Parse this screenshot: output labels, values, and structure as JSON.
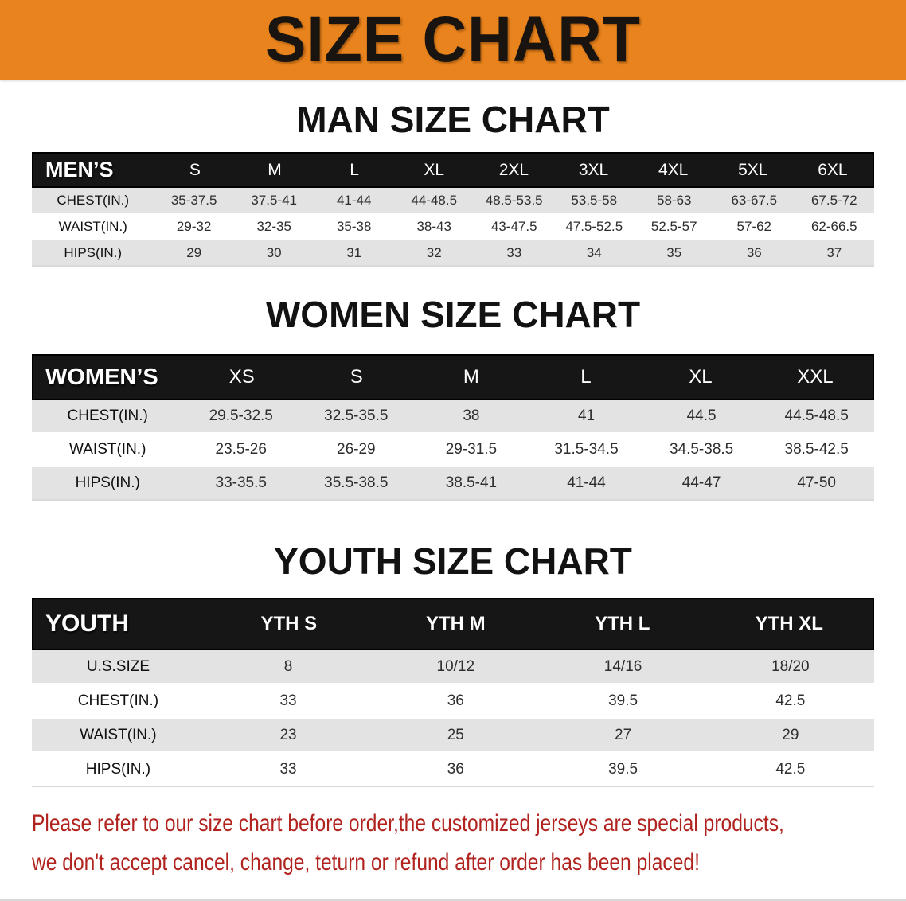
{
  "banner": {
    "title": "SIZE CHART"
  },
  "colors": {
    "banner_orange": "#e8831d",
    "header_black": "#161616",
    "row_gray": "#e3e3e3",
    "disclaimer_red": "#b1231f"
  },
  "sections": [
    {
      "id": "men",
      "title": "MAN SIZE CHART",
      "table": {
        "label": "MEN’S",
        "columns": [
          "S",
          "M",
          "L",
          "XL",
          "2XL",
          "3XL",
          "4XL",
          "5XL",
          "6XL"
        ],
        "rows": [
          {
            "label": "CHEST(IN.)",
            "values": [
              "35-37.5",
              "37.5-41",
              "41-44",
              "44-48.5",
              "48.5-53.5",
              "53.5-58",
              "58-63",
              "63-67.5",
              "67.5-72"
            ]
          },
          {
            "label": "WAIST(IN.)",
            "values": [
              "29-32",
              "32-35",
              "35-38",
              "38-43",
              "43-47.5",
              "47.5-52.5",
              "52.5-57",
              "57-62",
              "62-66.5"
            ]
          },
          {
            "label": "HIPS(IN.)",
            "values": [
              "29",
              "30",
              "31",
              "32",
              "33",
              "34",
              "35",
              "36",
              "37"
            ]
          }
        ]
      }
    },
    {
      "id": "women",
      "title": "WOMEN SIZE CHART",
      "table": {
        "label": "WOMEN’S",
        "columns": [
          "XS",
          "S",
          "M",
          "L",
          "XL",
          "XXL"
        ],
        "rows": [
          {
            "label": "CHEST(IN.)",
            "values": [
              "29.5-32.5",
              "32.5-35.5",
              "38",
              "41",
              "44.5",
              "44.5-48.5"
            ]
          },
          {
            "label": "WAIST(IN.)",
            "values": [
              "23.5-26",
              "26-29",
              "29-31.5",
              "31.5-34.5",
              "34.5-38.5",
              "38.5-42.5"
            ]
          },
          {
            "label": "HIPS(IN.)",
            "values": [
              "33-35.5",
              "35.5-38.5",
              "38.5-41",
              "41-44",
              "44-47",
              "47-50"
            ]
          }
        ]
      }
    },
    {
      "id": "youth",
      "title": "YOUTH SIZE CHART",
      "table": {
        "label": "YOUTH",
        "columns": [
          "YTH S",
          "YTH M",
          "YTH L",
          "YTH XL"
        ],
        "rows": [
          {
            "label": "U.S.SIZE",
            "values": [
              "8",
              "10/12",
              "14/16",
              "18/20"
            ]
          },
          {
            "label": "CHEST(IN.)",
            "values": [
              "33",
              "36",
              "39.5",
              "42.5"
            ]
          },
          {
            "label": "WAIST(IN.)",
            "values": [
              "23",
              "25",
              "27",
              "29"
            ]
          },
          {
            "label": "HIPS(IN.)",
            "values": [
              "33",
              "36",
              "39.5",
              "42.5"
            ]
          }
        ]
      }
    }
  ],
  "disclaimer": {
    "line1": "Please refer to our size chart before order,the customized jerseys are special products,",
    "line2": "we don't accept cancel, change, teturn or refund after order has been placed!"
  }
}
